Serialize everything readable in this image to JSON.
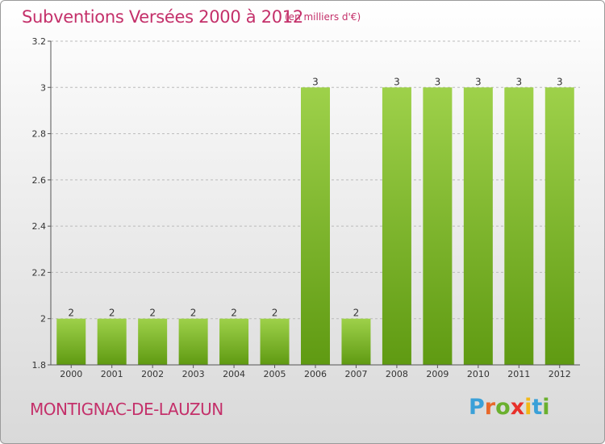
{
  "header": {
    "title": "Subventions Versées 2000 à 2012",
    "unit": "(en milliers d'€)"
  },
  "footer": {
    "place": "MONTIGNAC-DE-LAUZUN",
    "logo_letters": [
      "P",
      "r",
      "o",
      "x",
      "i",
      "t",
      "i"
    ],
    "logo_colors": [
      "#3aa0d8",
      "#e8682a",
      "#6ab02e",
      "#e8302a",
      "#f2b818",
      "#3aa0d8",
      "#6ab02e"
    ]
  },
  "colors": {
    "title": "#c4306a",
    "bar_top": "#9ed14a",
    "bar_bottom": "#5f9a12",
    "axis": "#555555",
    "grid": "#bbbbbb"
  },
  "chart_data": {
    "type": "bar",
    "title": "Subventions Versées 2000 à 2012",
    "categories": [
      "2000",
      "2001",
      "2002",
      "2003",
      "2004",
      "2005",
      "2006",
      "2007",
      "2008",
      "2009",
      "2010",
      "2011",
      "2012"
    ],
    "values": [
      2,
      2,
      2,
      2,
      2,
      2,
      3,
      2,
      3,
      3,
      3,
      3,
      3
    ],
    "data_labels": [
      "2",
      "2",
      "2",
      "2",
      "2",
      "2",
      "3",
      "2",
      "3",
      "3",
      "3",
      "3",
      "3"
    ],
    "ylim": [
      1.8,
      3.2
    ],
    "yticks": [
      1.8,
      2,
      2.2,
      2.4,
      2.6,
      2.8,
      3,
      3.2
    ],
    "ytick_labels": [
      "1.8",
      "2",
      "2.2",
      "2.4",
      "2.6",
      "2.8",
      "3",
      "3.2"
    ],
    "xlabel": "",
    "ylabel": "",
    "grid": "horizontal dashed",
    "legend": "none"
  }
}
